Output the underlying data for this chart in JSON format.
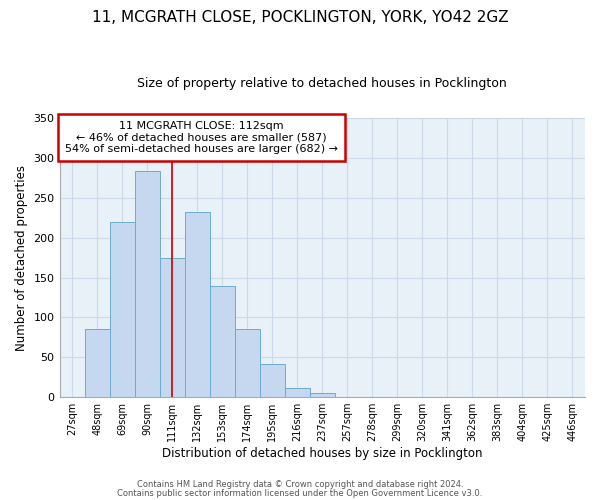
{
  "title1": "11, MCGRATH CLOSE, POCKLINGTON, YORK, YO42 2GZ",
  "title2": "Size of property relative to detached houses in Pocklington",
  "xlabel": "Distribution of detached houses by size in Pocklington",
  "ylabel": "Number of detached properties",
  "bar_labels": [
    "27sqm",
    "48sqm",
    "69sqm",
    "90sqm",
    "111sqm",
    "132sqm",
    "153sqm",
    "174sqm",
    "195sqm",
    "216sqm",
    "237sqm",
    "257sqm",
    "278sqm",
    "299sqm",
    "320sqm",
    "341sqm",
    "362sqm",
    "383sqm",
    "404sqm",
    "425sqm",
    "446sqm"
  ],
  "bar_values": [
    0,
    86,
    219,
    283,
    175,
    232,
    139,
    85,
    41,
    11,
    5,
    0,
    0,
    0,
    0,
    0,
    0,
    0,
    0,
    0,
    0
  ],
  "bar_color": "#c5d8f0",
  "bar_edge_color": "#6aabd2",
  "vline_x": 4,
  "vline_color": "#cc0000",
  "ylim": [
    0,
    350
  ],
  "yticks": [
    0,
    50,
    100,
    150,
    200,
    250,
    300,
    350
  ],
  "annotation_title": "11 MCGRATH CLOSE: 112sqm",
  "annotation_line1": "← 46% of detached houses are smaller (587)",
  "annotation_line2": "54% of semi-detached houses are larger (682) →",
  "annotation_box_color": "#cc0000",
  "footer1": "Contains HM Land Registry data © Crown copyright and database right 2024.",
  "footer2": "Contains public sector information licensed under the Open Government Licence v3.0.",
  "bg_color": "#ffffff",
  "grid_color": "#ccd9e8",
  "title1_fontsize": 11,
  "title2_fontsize": 9
}
